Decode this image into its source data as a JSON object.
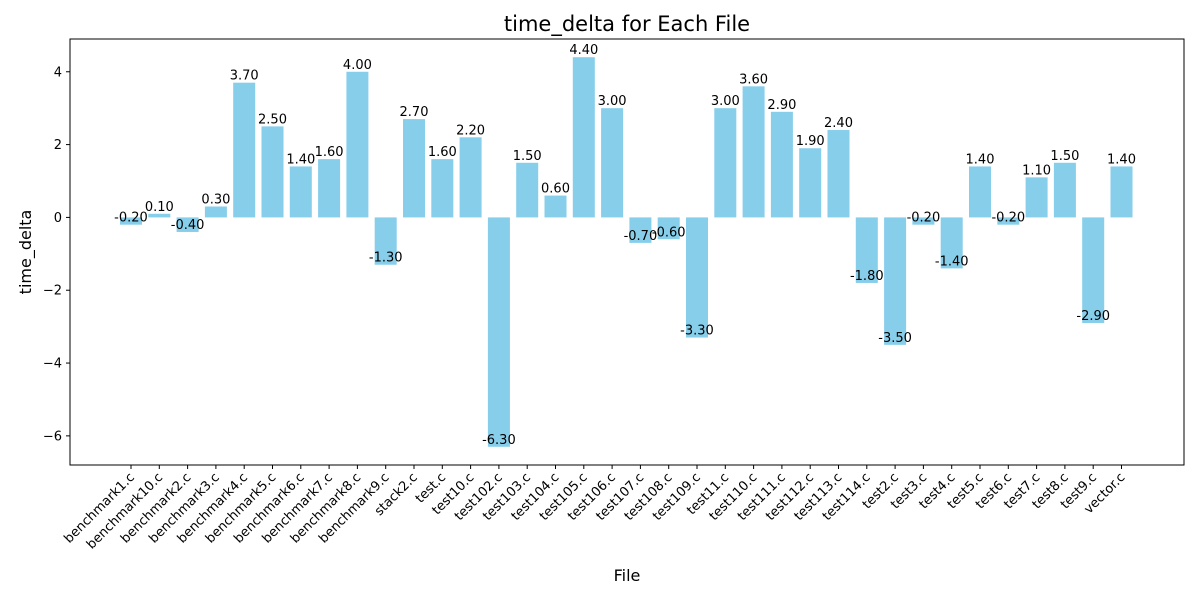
{
  "chart_data": {
    "type": "bar",
    "title": "time_delta for Each File",
    "xlabel": "File",
    "ylabel": "time_delta",
    "ylim": [
      -6.8,
      4.9
    ],
    "yticks": [
      4,
      2,
      0,
      -2,
      -4,
      -6
    ],
    "ytick_labels": [
      "4",
      "2",
      "0",
      "−2",
      "−4",
      "−6"
    ],
    "grid": false,
    "bar_color": "#87ceeb",
    "categories": [
      "benchmark1.c",
      "benchmark10.c",
      "benchmark2.c",
      "benchmark3.c",
      "benchmark4.c",
      "benchmark5.c",
      "benchmark6.c",
      "benchmark7.c",
      "benchmark8.c",
      "benchmark9.c",
      "stack2.c",
      "test.c",
      "test10.c",
      "test102.c",
      "test103.c",
      "test104.c",
      "test105.c",
      "test106.c",
      "test107.c",
      "test108.c",
      "test109.c",
      "test11.c",
      "test110.c",
      "test111.c",
      "test112.c",
      "test113.c",
      "test114.c",
      "test2.c",
      "test3.c",
      "test4.c",
      "test5.c",
      "test6.c",
      "test7.c",
      "test8.c",
      "test9.c",
      "vector.c"
    ],
    "values": [
      -0.2,
      0.1,
      -0.4,
      0.3,
      3.7,
      2.5,
      1.4,
      1.6,
      4.0,
      -1.3,
      2.7,
      1.6,
      2.2,
      -6.3,
      1.5,
      0.6,
      4.4,
      3.0,
      -0.7,
      -0.6,
      -3.3,
      3.0,
      3.6,
      2.9,
      1.9,
      2.4,
      -1.8,
      -3.5,
      -0.2,
      -1.4,
      1.4,
      -0.2,
      1.1,
      1.5,
      -2.9,
      1.4
    ],
    "value_labels": [
      "-0.20",
      "0.10",
      "-0.40",
      "0.30",
      "3.70",
      "2.50",
      "1.40",
      "1.60",
      "4.00",
      "-1.30",
      "2.70",
      "1.60",
      "2.20",
      "-6.30",
      "1.50",
      "0.60",
      "4.40",
      "3.00",
      "-0.70",
      "-0.60",
      "-3.30",
      "3.00",
      "3.60",
      "2.90",
      "1.90",
      "2.40",
      "-1.80",
      "-3.50",
      "-0.20",
      "-1.40",
      "1.40",
      "-0.20",
      "1.10",
      "1.50",
      "-2.90",
      "1.40"
    ]
  }
}
